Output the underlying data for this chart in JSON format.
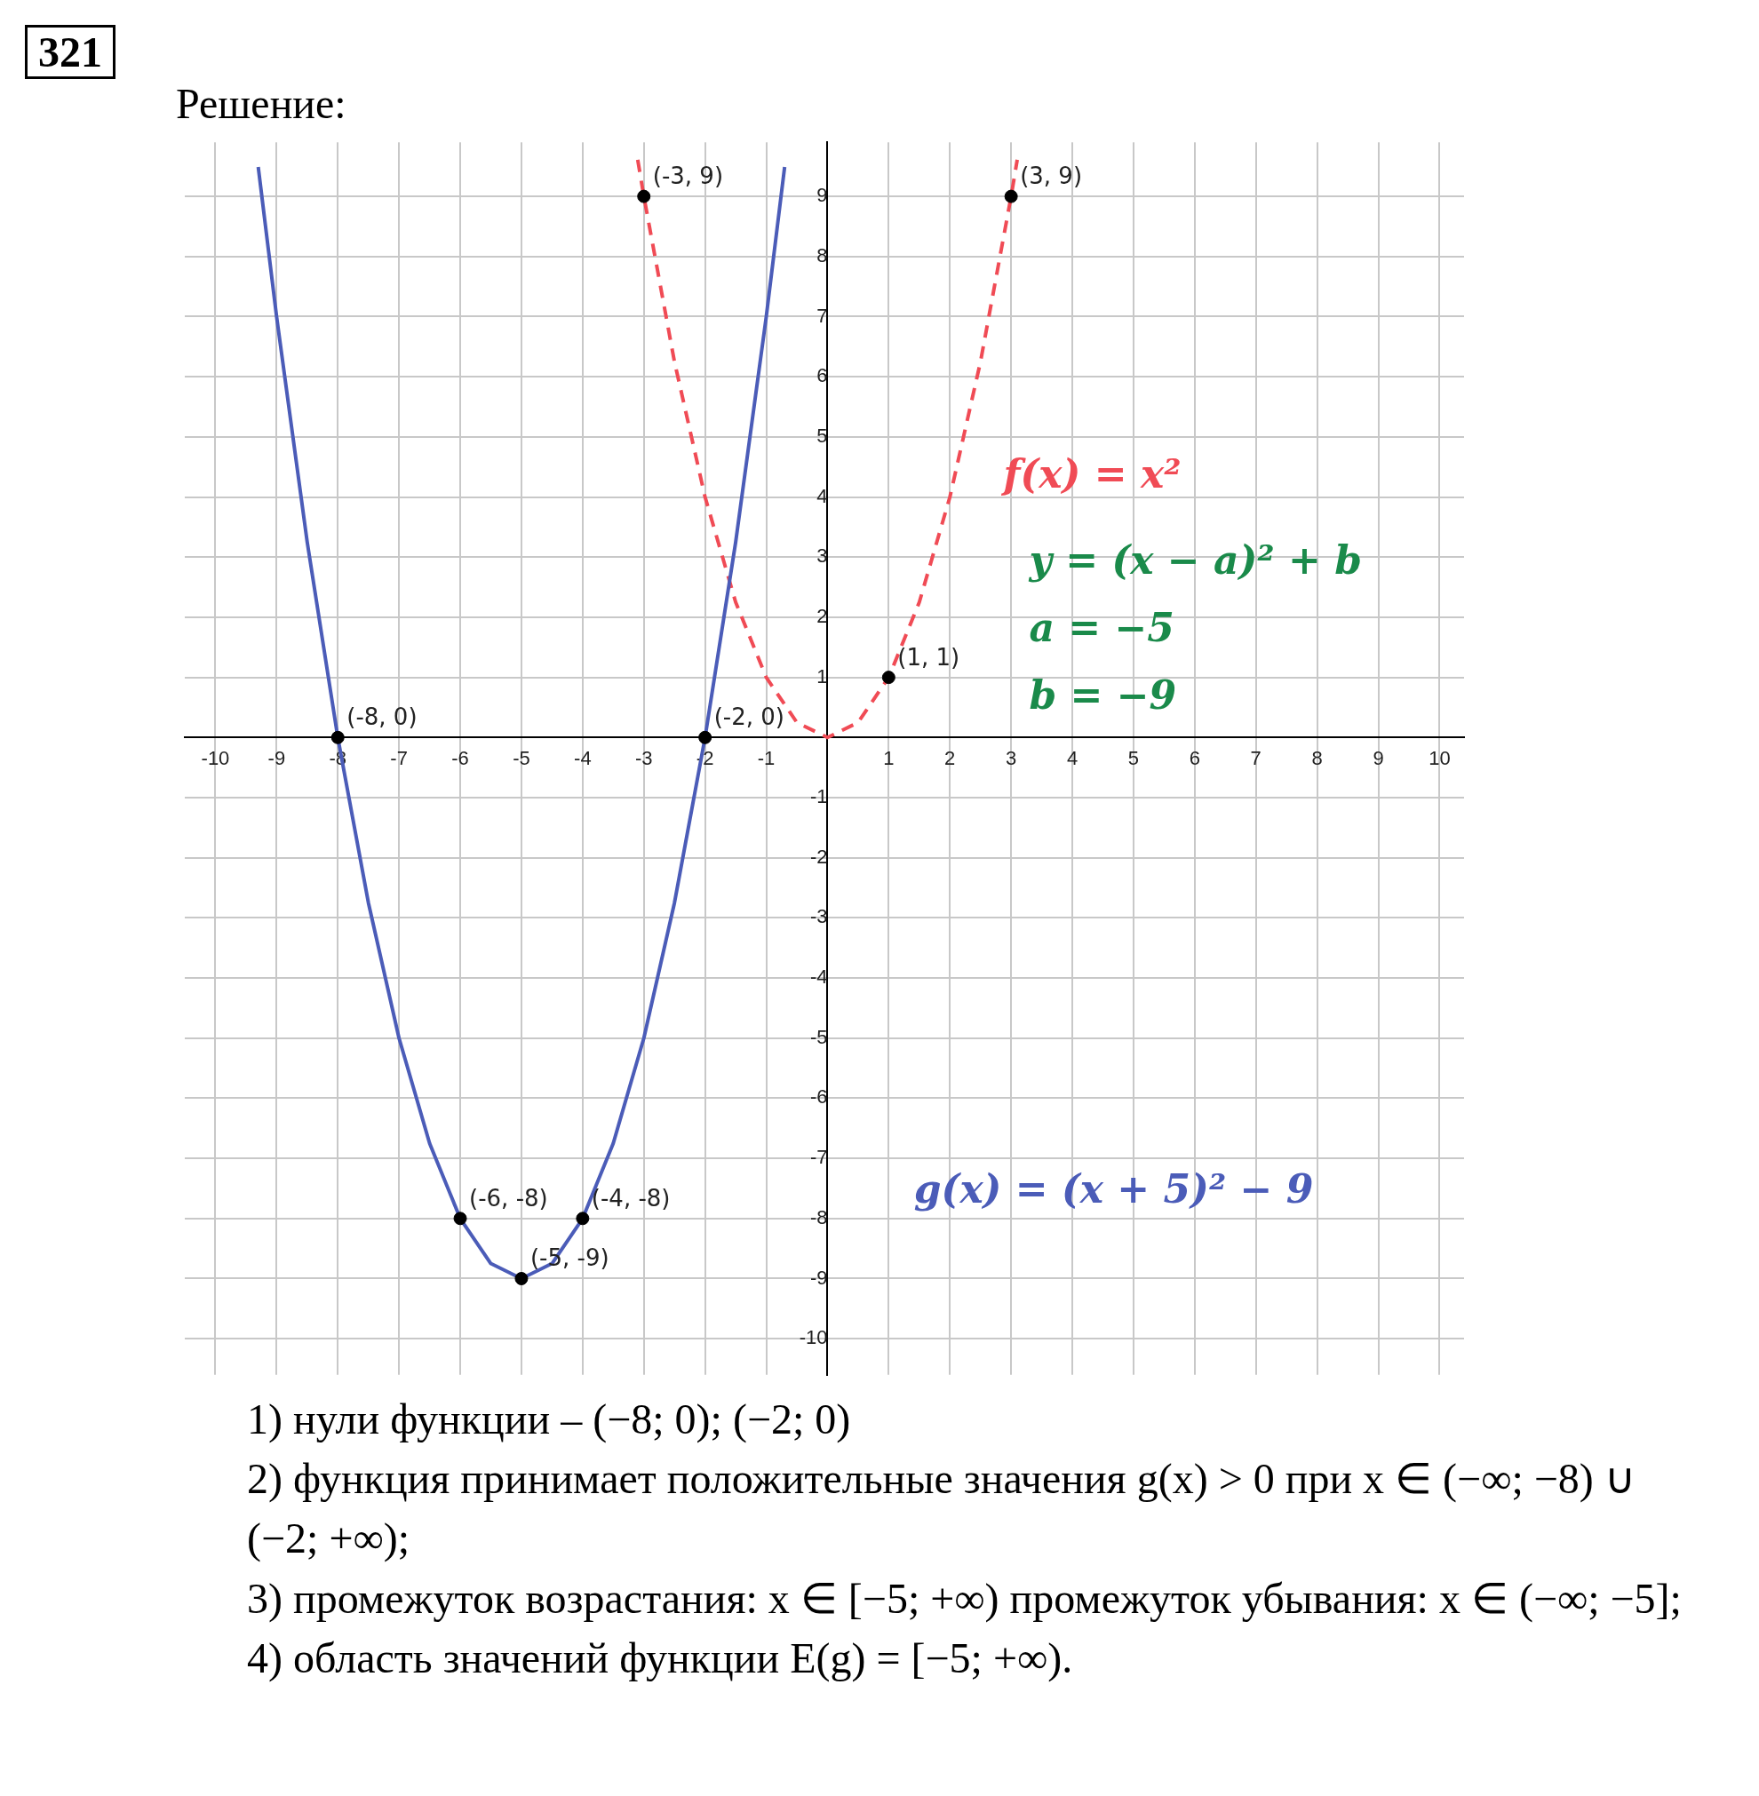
{
  "chart_data": {
    "type": "line",
    "title": "321",
    "subtitle": "Решение:",
    "xlim": [
      -10.5,
      10.4
    ],
    "ylim": [
      -10.6,
      9.9
    ],
    "xticks": [
      -10,
      -9,
      -8,
      -7,
      -6,
      -5,
      -4,
      -3,
      -2,
      -1,
      {
        "value": 0,
        "label": null
      },
      1,
      2,
      3,
      4,
      5,
      6,
      7,
      8,
      9,
      10
    ],
    "yticks": [
      -10,
      -9,
      -8,
      -7,
      -6,
      -5,
      -4,
      -3,
      -2,
      -1,
      {
        "value": 0,
        "label": null
      },
      1,
      2,
      3,
      4,
      5,
      6,
      7,
      8,
      9
    ],
    "grid": true,
    "legend": false,
    "series": [
      {
        "name": "g(x) = (x + 5)² − 9",
        "color": "#4b5cb8",
        "line_style": "solid",
        "marker": "none",
        "x": [
          -9.3,
          -9,
          -8.5,
          -8,
          -7.5,
          -7,
          -6.5,
          -6,
          -5.5,
          -5,
          -4.5,
          -4,
          -3.5,
          -3,
          -2.5,
          -2,
          -1.5,
          -1,
          -0.7
        ],
        "values": [
          9.49,
          7,
          3.25,
          0,
          -2.75,
          -5,
          -6.75,
          -8,
          -8.75,
          -9,
          -8.75,
          -8,
          -6.75,
          -5,
          -2.75,
          0,
          3.25,
          7,
          9.49
        ]
      },
      {
        "name": "f(x) = x²",
        "color": "#f04b55",
        "line_style": "dashed",
        "marker": "none",
        "x": [
          -3.1,
          -3,
          -2.5,
          -2,
          -1.5,
          -1,
          -0.5,
          0,
          0.5,
          1,
          1.5,
          2,
          2.5,
          3,
          3.1
        ],
        "values": [
          9.61,
          9,
          6.25,
          4,
          2.25,
          1,
          0.25,
          0,
          0.25,
          1,
          2.25,
          4,
          6.25,
          9,
          9.61
        ]
      },
      {
        "type": "scatter",
        "color": "#000000",
        "marker": "circle",
        "x": [
          -8,
          -2,
          -6,
          -4,
          -5,
          -3,
          3,
          1
        ],
        "values": [
          0,
          0,
          -8,
          -8,
          -9,
          9,
          9,
          1
        ]
      }
    ],
    "annotations": [
      {
        "text": "(-8, 0)",
        "x": -8,
        "y": 0
      },
      {
        "text": "(-2, 0)",
        "x": -2,
        "y": 0
      },
      {
        "text": "(-6, -8)",
        "x": -6,
        "y": -8
      },
      {
        "text": "(-4, -8)",
        "x": -4,
        "y": -8
      },
      {
        "text": "(-5, -9)",
        "x": -5,
        "y": -9
      },
      {
        "text": "(-3, 9)",
        "x": -3,
        "y": 9
      },
      {
        "text": "(3, 9)",
        "x": 3,
        "y": 9
      },
      {
        "text": "(1, 1)",
        "x": 1,
        "y": 1
      },
      "y = (x − a)² + b",
      "a = −5",
      "b = −9",
      "1) нули функции – (−8; 0); (−2; 0)",
      "2) функция принимает положительные значения g(x) > 0 при x ∈ (−∞; −8) ∪ (−2; +∞);",
      "3) промежуток возрастания: x ∈ [−5; +∞) промежуток убывания: x ∈ (−∞; −5];",
      "4) область значений функции E(g) = [−5; +∞)."
    ]
  }
}
